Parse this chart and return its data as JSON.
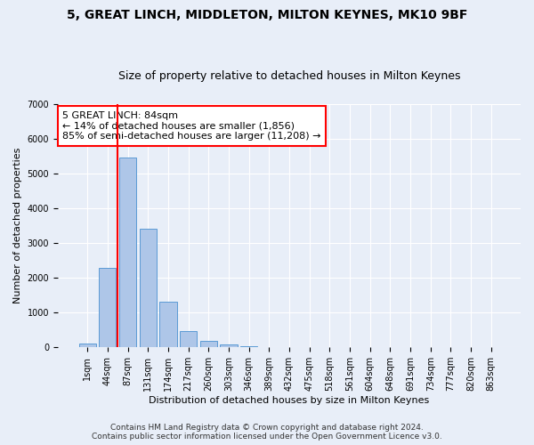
{
  "title": "5, GREAT LINCH, MIDDLETON, MILTON KEYNES, MK10 9BF",
  "subtitle": "Size of property relative to detached houses in Milton Keynes",
  "xlabel": "Distribution of detached houses by size in Milton Keynes",
  "ylabel": "Number of detached properties",
  "footer_line1": "Contains HM Land Registry data © Crown copyright and database right 2024.",
  "footer_line2": "Contains public sector information licensed under the Open Government Licence v3.0.",
  "annotation_title": "5 GREAT LINCH: 84sqm",
  "annotation_line1": "← 14% of detached houses are smaller (1,856)",
  "annotation_line2": "85% of semi-detached houses are larger (11,208) →",
  "x_labels": [
    "1sqm",
    "44sqm",
    "87sqm",
    "131sqm",
    "174sqm",
    "217sqm",
    "260sqm",
    "303sqm",
    "346sqm",
    "389sqm",
    "432sqm",
    "475sqm",
    "518sqm",
    "561sqm",
    "604sqm",
    "648sqm",
    "691sqm",
    "734sqm",
    "777sqm",
    "820sqm",
    "863sqm"
  ],
  "bar_values": [
    100,
    2280,
    5450,
    3420,
    1310,
    460,
    185,
    85,
    40,
    0,
    0,
    0,
    0,
    0,
    0,
    0,
    0,
    0,
    0,
    0,
    0
  ],
  "bar_color": "#aec6e8",
  "bar_edge_color": "#5b9bd5",
  "red_line_x": 1.5,
  "ylim": [
    0,
    7000
  ],
  "background_color": "#e8eef8",
  "plot_bg_color": "#e8eef8",
  "grid_color": "#ffffff",
  "title_fontsize": 10,
  "subtitle_fontsize": 9,
  "axis_label_fontsize": 8,
  "tick_fontsize": 7,
  "annotation_fontsize": 8,
  "footer_fontsize": 6.5
}
